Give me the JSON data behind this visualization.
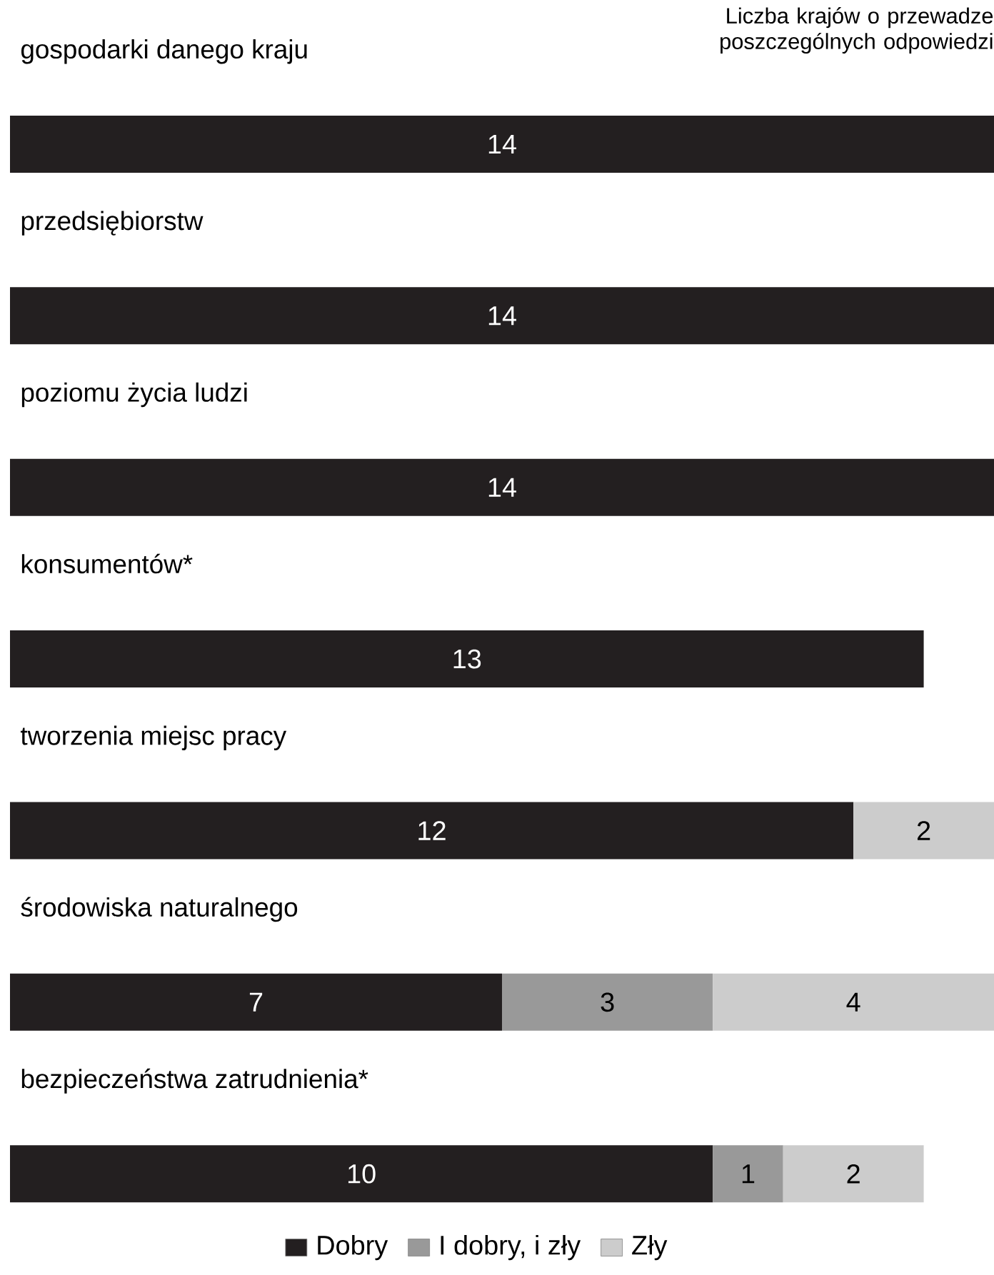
{
  "chart_data": {
    "type": "bar",
    "orientation": "horizontal",
    "stacked": true,
    "data_labels": true,
    "title": "Liczba krajów o przewadze poszczególnych odpowiedzi",
    "categories": [
      "gospodarki danego kraju",
      "przedsiębiorstw",
      "poziomu życia ludzi",
      "konsumentów*",
      "tworzenia miejsc pracy",
      "środowiska naturalnego",
      "bezpieczeństwa zatrudnienia*"
    ],
    "series": [
      {
        "name": "Dobry",
        "color": "#231f20",
        "values": [
          14,
          14,
          14,
          13,
          12,
          7,
          10
        ]
      },
      {
        "name": "I dobry, i zły",
        "color": "#999999",
        "values": [
          null,
          null,
          null,
          null,
          null,
          3,
          1
        ]
      },
      {
        "name": "Zły",
        "color": "#cccccc",
        "values": [
          null,
          null,
          null,
          null,
          2,
          4,
          2
        ]
      }
    ],
    "legend": "bottom"
  }
}
